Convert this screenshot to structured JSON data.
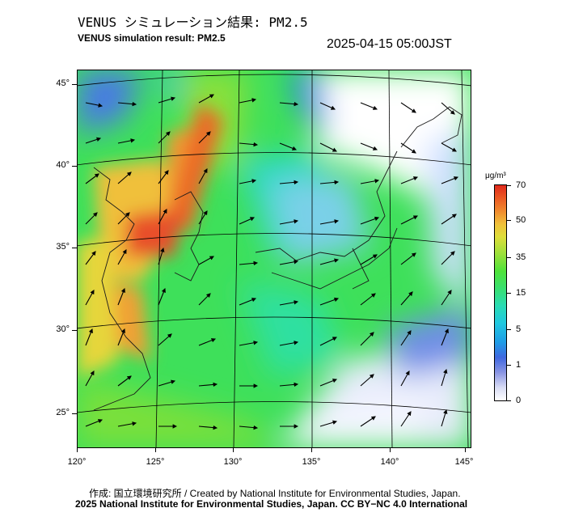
{
  "title_ja": "VENUS シミュレーション結果: PM2.5",
  "title_en": "VENUS simulation result: PM2.5",
  "timestamp": "2025-04-15 05:00JST",
  "axes": {
    "latitude_labels": [
      "45°",
      "40°",
      "35°",
      "30°",
      "25°"
    ],
    "longitude_labels": [
      "120°",
      "125°",
      "130°",
      "135°",
      "140°",
      "145°"
    ]
  },
  "colorbar": {
    "unit": "μg/m³",
    "ticks": [
      "70",
      "50",
      "35",
      "15",
      "5",
      "1",
      "0"
    ],
    "colors": {
      "low": "#ffffff",
      "blue": "#3f68e0",
      "cyan": "#20c8e0",
      "green": "#4ee23a",
      "yellow": "#dede3a",
      "orange": "#f08a2e",
      "red": "#e02a1c"
    }
  },
  "footer": {
    "credit": "作成: 国立環境研究所 / Created by National Institute for Environmental Studies, Japan.",
    "license": "2025 National Institute for Environmental Studies, Japan. CC BY−NC 4.0 International"
  }
}
